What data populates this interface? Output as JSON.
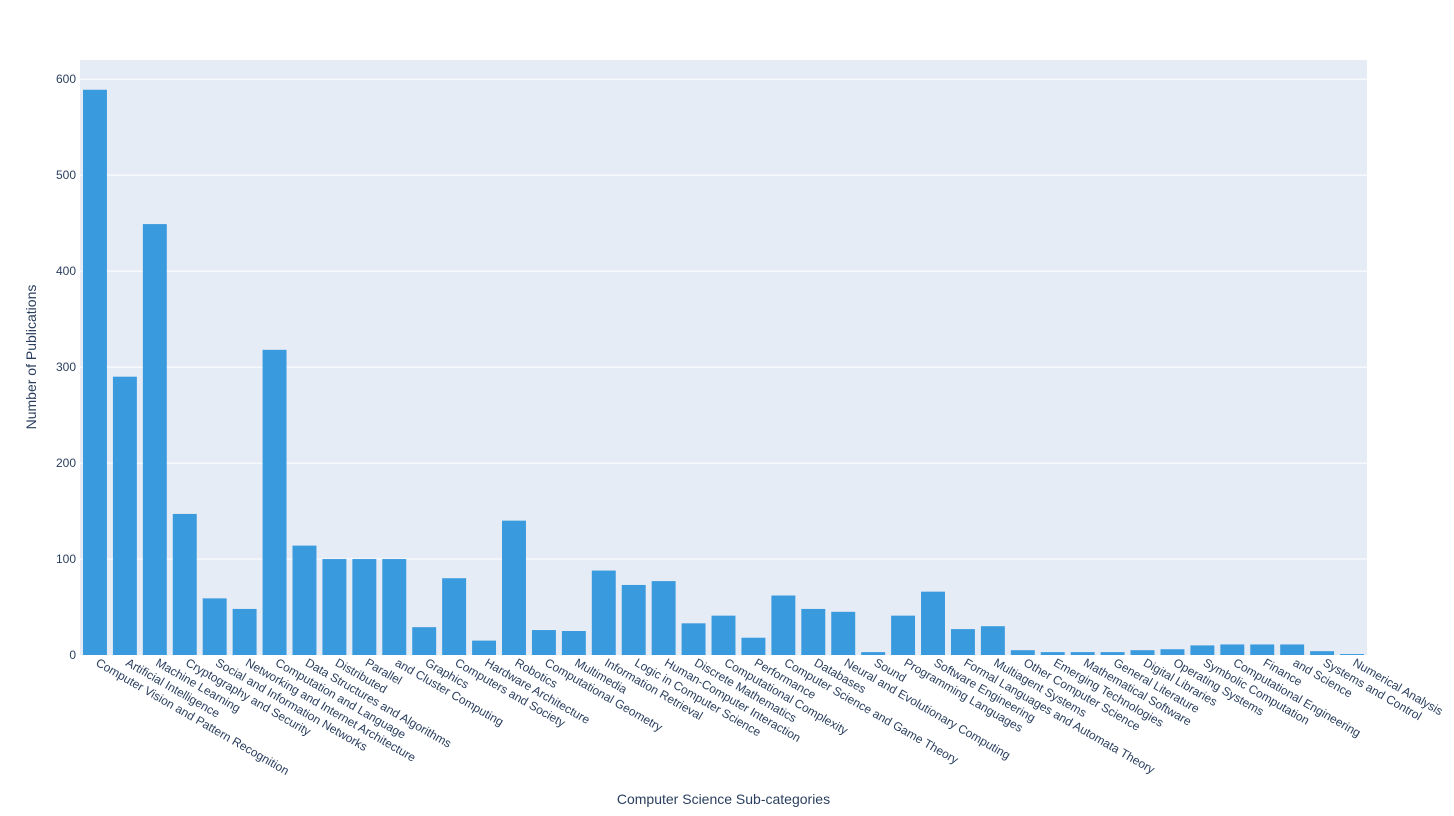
{
  "colors": {
    "bar": "#3a9ade",
    "plot_bg": "#e5ecf6",
    "grid": "#ffffff",
    "text": "#2a3f5f"
  },
  "chart_data": {
    "type": "bar",
    "xlabel": "Computer Science Sub-categories",
    "ylabel": "Number of Publications",
    "ylim": [
      0,
      620
    ],
    "yticks": [
      0,
      100,
      200,
      300,
      400,
      500,
      600
    ],
    "grid": true,
    "categories": [
      "Computer Vision and Pattern Recognition",
      "Artificial Intelligence",
      "Machine Learning",
      "Cryptography and Security",
      "Social and Information Networks",
      "Networking and Internet Architecture",
      "Computation and Language",
      "Data Structures and Algorithms",
      "Distributed",
      "Parallel",
      "and Cluster Computing",
      "Graphics",
      "Computers and Society",
      "Hardware Architecture",
      "Robotics",
      "Computational Geometry",
      "Multimedia",
      "Information Retrieval",
      "Logic in Computer Science",
      "Human-Computer Interaction",
      "Discrete Mathematics",
      "Computational Complexity",
      "Performance",
      "Computer Science and Game Theory",
      "Databases",
      "Neural and Evolutionary Computing",
      "Sound",
      "Programming Languages",
      "Software Engineering",
      "Formal Languages and Automata Theory",
      "Multiagent Systems",
      "Other Computer Science",
      "Emerging Technologies",
      "Mathematical Software",
      "General Literature",
      "Digital Libraries",
      "Operating Systems",
      "Symbolic Computation",
      "Computational Engineering",
      "Finance",
      "and Science",
      "Systems and Control",
      "Numerical Analysis"
    ],
    "values": [
      589,
      290,
      449,
      147,
      59,
      48,
      318,
      114,
      100,
      100,
      100,
      29,
      80,
      15,
      140,
      26,
      25,
      88,
      73,
      77,
      33,
      41,
      18,
      62,
      48,
      45,
      3,
      41,
      66,
      27,
      30,
      5,
      3,
      3,
      3,
      5,
      6,
      10,
      11,
      11,
      11,
      4,
      1
    ]
  }
}
